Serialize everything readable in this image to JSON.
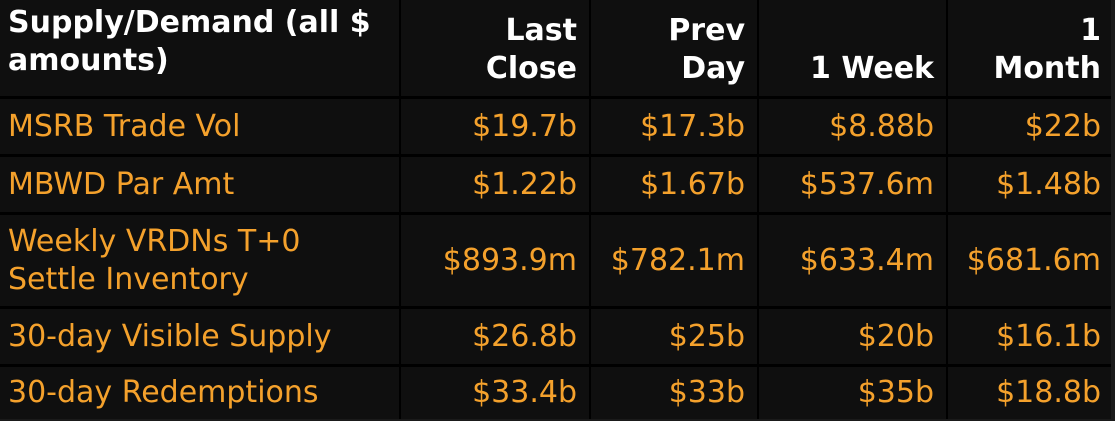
{
  "header": {
    "col0": [
      "Supply/Demand (all $",
      "amounts)"
    ],
    "col1": [
      "Last",
      "Close"
    ],
    "col2": [
      "Prev",
      "Day"
    ],
    "col3": [
      "",
      "1 Week"
    ],
    "col4": [
      "1",
      "Month"
    ]
  },
  "rows": [
    {
      "label": [
        "MSRB Trade Vol"
      ],
      "last_close": "$19.7b",
      "prev_day": "$17.3b",
      "one_week": "$8.88b",
      "one_month": "$22b"
    },
    {
      "label": [
        "MBWD Par Amt"
      ],
      "last_close": "$1.22b",
      "prev_day": "$1.67b",
      "one_week": "$537.6m",
      "one_month": "$1.48b"
    },
    {
      "label": [
        "Weekly VRDNs T+0",
        "Settle Inventory"
      ],
      "last_close": "$893.9m",
      "prev_day": "$782.1m",
      "one_week": "$633.4m",
      "one_month": "$681.6m"
    },
    {
      "label": [
        "30-day Visible Supply"
      ],
      "last_close": "$26.8b",
      "prev_day": "$25b",
      "one_week": "$20b",
      "one_month": "$16.1b"
    },
    {
      "label": [
        "30-day Redemptions"
      ],
      "last_close": "$33.4b",
      "prev_day": "$33b",
      "one_week": "$35b",
      "one_month": "$18.8b"
    }
  ],
  "colors": {
    "background": "#0f0f0f",
    "header_text": "#ffffff",
    "value_text": "#f4a12c",
    "grid": "#000000"
  }
}
